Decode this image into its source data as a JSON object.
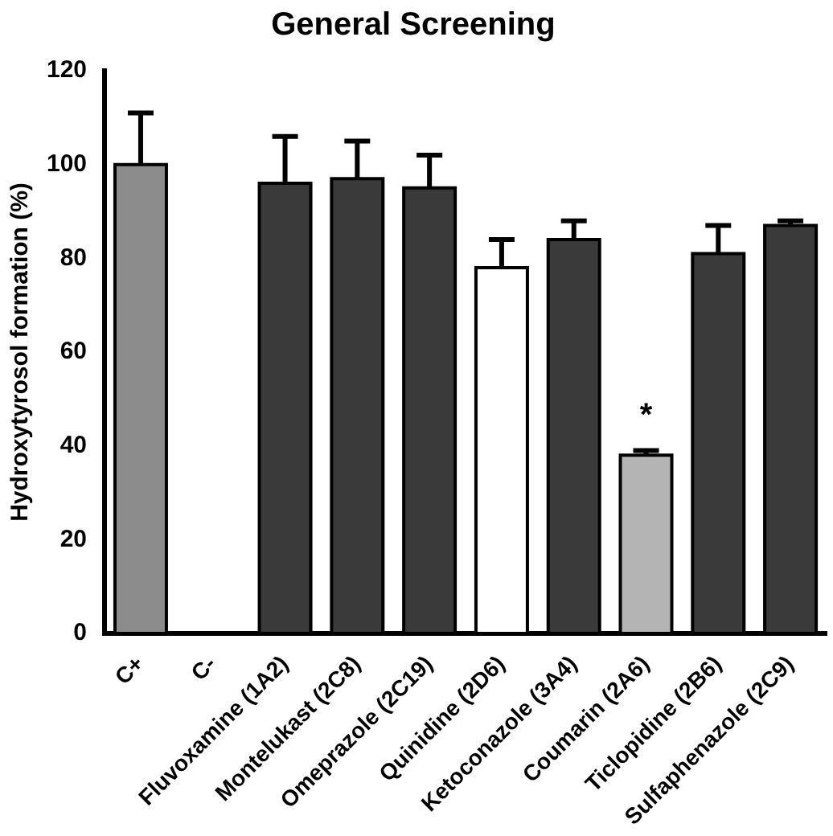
{
  "chart_data": {
    "type": "bar",
    "title": "General Screening",
    "ylabel": "Hydroxytyrosol formation (%)",
    "categories": [
      "C+",
      "C-",
      "Fluvoxamine (1A2)",
      "Montelukast (2C8)",
      "Omeprazole (2C19)",
      "Quinidine (2D6)",
      "Ketoconazole (3A4)",
      "Coumarin (2A6)",
      "Ticlopidine (2B6)",
      "Sulfaphenazole (2C9)"
    ],
    "values": [
      100,
      0,
      96,
      97,
      95,
      78,
      84,
      38,
      81,
      87
    ],
    "errors": [
      [
        100,
        111
      ],
      null,
      [
        96,
        106
      ],
      [
        97,
        105
      ],
      [
        95,
        102
      ],
      [
        78,
        84
      ],
      [
        84,
        88
      ],
      [
        38,
        39
      ],
      [
        81,
        87
      ],
      [
        87,
        88
      ]
    ],
    "colors": [
      "#8c8c8c",
      "#ffffff",
      "#3a3a3a",
      "#3a3a3a",
      "#3a3a3a",
      "#ffffff",
      "#3a3a3a",
      "#b4b4b4",
      "#3a3a3a",
      "#3a3a3a"
    ],
    "ylim": [
      0,
      120
    ],
    "yticks": [
      0,
      20,
      40,
      60,
      80,
      100,
      120
    ],
    "grid": false,
    "legend": false,
    "annotations": [
      {
        "text": "*",
        "x": "Coumarin (2A6)",
        "y": 38
      }
    ]
  }
}
